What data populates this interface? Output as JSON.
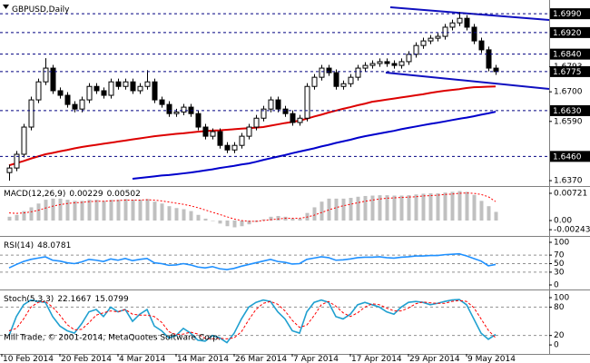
{
  "chart_data": [
    {
      "type": "candlestick",
      "title": "GBPUSD,Daily",
      "categories": [
        "10 Feb 2014",
        null,
        null,
        null,
        null,
        null,
        null,
        null,
        "20 Feb 2014",
        null,
        null,
        null,
        null,
        null,
        null,
        null,
        "4 Mar 2014",
        null,
        null,
        null,
        null,
        null,
        null,
        null,
        "14 Mar 2014",
        null,
        null,
        null,
        null,
        null,
        null,
        null,
        "26 Mar 2014",
        null,
        null,
        null,
        null,
        null,
        null,
        null,
        "7 Apr 2014",
        null,
        null,
        null,
        null,
        null,
        null,
        null,
        "17 Apr 2014",
        null,
        null,
        null,
        null,
        null,
        null,
        null,
        "29 Apr 2014",
        null,
        null,
        null,
        null,
        null,
        null,
        null,
        "9 May 2014",
        null,
        null,
        null
      ],
      "open": [
        1.64,
        1.6417,
        1.6468,
        1.6569,
        1.667,
        1.6737,
        1.6788,
        1.6704,
        1.6687,
        1.6653,
        1.6636,
        1.667,
        1.672,
        1.6704,
        1.6687,
        1.6737,
        1.672,
        1.6737,
        1.6704,
        1.672,
        1.6737,
        1.667,
        1.6653,
        1.6619,
        1.6625,
        1.6643,
        1.6619,
        1.6569,
        1.6535,
        1.6552,
        1.6501,
        1.6484,
        1.6501,
        1.6535,
        1.6569,
        1.6602,
        1.6636,
        1.667,
        1.6636,
        1.6619,
        1.6586,
        1.6602,
        1.672,
        1.6754,
        1.6788,
        1.6771,
        1.672,
        1.673,
        1.6754,
        1.6788,
        1.6798,
        1.6805,
        1.6812,
        1.6805,
        1.6798,
        1.6812,
        1.6839,
        1.6872,
        1.6889,
        1.6899,
        1.6906,
        1.694,
        1.6956,
        1.6973,
        1.694,
        1.6889,
        1.6856,
        1.6788
      ],
      "high": [
        1.6429,
        1.648,
        1.6581,
        1.6682,
        1.6749,
        1.6825,
        1.68,
        1.6716,
        1.6699,
        1.6665,
        1.6682,
        1.6732,
        1.6732,
        1.6716,
        1.6749,
        1.6749,
        1.6749,
        1.6749,
        1.6732,
        1.678,
        1.6749,
        1.6682,
        1.6665,
        1.6637,
        1.6655,
        1.6655,
        1.6631,
        1.6581,
        1.6564,
        1.6564,
        1.6513,
        1.6513,
        1.6547,
        1.6581,
        1.6614,
        1.6648,
        1.6682,
        1.6682,
        1.6648,
        1.6631,
        1.6614,
        1.6732,
        1.6766,
        1.68,
        1.68,
        1.6783,
        1.6742,
        1.6766,
        1.68,
        1.681,
        1.6817,
        1.6824,
        1.6824,
        1.6817,
        1.6824,
        1.6851,
        1.6884,
        1.6901,
        1.6911,
        1.6918,
        1.6952,
        1.6968,
        1.6996,
        1.6985,
        1.6952,
        1.6901,
        1.6868,
        1.68
      ],
      "low": [
        1.637,
        1.6405,
        1.6456,
        1.6557,
        1.6658,
        1.6725,
        1.6692,
        1.6675,
        1.6641,
        1.6624,
        1.6624,
        1.6658,
        1.6692,
        1.6675,
        1.6675,
        1.6708,
        1.6708,
        1.6692,
        1.6692,
        1.6708,
        1.6658,
        1.6641,
        1.6607,
        1.6607,
        1.6613,
        1.6607,
        1.6557,
        1.6523,
        1.6523,
        1.6489,
        1.6472,
        1.6472,
        1.6489,
        1.6523,
        1.6557,
        1.659,
        1.6624,
        1.6624,
        1.6607,
        1.6574,
        1.6574,
        1.659,
        1.6708,
        1.6742,
        1.6759,
        1.6708,
        1.6708,
        1.6718,
        1.6742,
        1.6776,
        1.6786,
        1.6793,
        1.6793,
        1.6786,
        1.6786,
        1.68,
        1.6827,
        1.686,
        1.6877,
        1.6887,
        1.6894,
        1.6928,
        1.6944,
        1.6928,
        1.6877,
        1.6844,
        1.6776,
        1.6763
      ],
      "close": [
        1.6417,
        1.6468,
        1.6569,
        1.667,
        1.6737,
        1.6788,
        1.6704,
        1.6687,
        1.6653,
        1.6636,
        1.667,
        1.672,
        1.6704,
        1.6687,
        1.6737,
        1.672,
        1.6737,
        1.6704,
        1.672,
        1.6737,
        1.667,
        1.6653,
        1.6619,
        1.6625,
        1.6643,
        1.6619,
        1.6569,
        1.6535,
        1.6552,
        1.6501,
        1.6484,
        1.6501,
        1.6535,
        1.6569,
        1.6602,
        1.6636,
        1.667,
        1.6636,
        1.6619,
        1.6586,
        1.6602,
        1.672,
        1.6754,
        1.6788,
        1.6771,
        1.672,
        1.673,
        1.6754,
        1.6788,
        1.6798,
        1.6805,
        1.6812,
        1.6805,
        1.6798,
        1.6812,
        1.6839,
        1.6872,
        1.6889,
        1.6899,
        1.6906,
        1.694,
        1.6956,
        1.6973,
        1.694,
        1.6889,
        1.6856,
        1.6788,
        1.6775
      ],
      "lines": [
        {
          "color": "#dd0000",
          "values": [
            1.6427,
            1.6435,
            1.6443,
            1.6452,
            1.646,
            1.6468,
            1.6473,
            1.6479,
            1.6484,
            1.649,
            1.6495,
            1.6499,
            1.6503,
            1.6507,
            1.6511,
            1.6515,
            1.6519,
            1.6523,
            1.6527,
            1.6531,
            1.6535,
            1.6538,
            1.6541,
            1.6544,
            1.6546,
            1.6549,
            1.6552,
            1.6554,
            1.6556,
            1.6557,
            1.6559,
            1.6561,
            1.6563,
            1.6565,
            1.6567,
            1.6569,
            1.6574,
            1.6579,
            1.6584,
            1.6588,
            1.6593,
            1.66,
            1.6608,
            1.6615,
            1.6623,
            1.663,
            1.6637,
            1.6643,
            1.665,
            1.6656,
            1.6663,
            1.6667,
            1.6671,
            1.6675,
            1.6679,
            1.6683,
            1.6687,
            1.6691,
            1.6696,
            1.67,
            1.6704,
            1.6707,
            1.671,
            1.6714,
            1.6717,
            1.6718,
            1.6719,
            1.672
          ]
        },
        {
          "color": "#0000cc",
          "values": [
            null,
            null,
            null,
            null,
            null,
            null,
            null,
            null,
            null,
            null,
            null,
            null,
            null,
            null,
            null,
            null,
            null,
            1.6377,
            1.638,
            1.6383,
            1.6386,
            1.6389,
            1.6391,
            1.6394,
            1.6397,
            1.64,
            1.6404,
            1.6408,
            1.6412,
            1.6417,
            1.6421,
            1.6425,
            1.643,
            1.6434,
            1.644,
            1.6447,
            1.6453,
            1.6459,
            1.6465,
            1.6472,
            1.6478,
            1.6484,
            1.649,
            1.6497,
            1.6503,
            1.651,
            1.6516,
            1.6522,
            1.6529,
            1.6535,
            1.654,
            1.6545,
            1.655,
            1.6555,
            1.6561,
            1.6566,
            1.6571,
            1.6576,
            1.6581,
            1.6585,
            1.659,
            1.6595,
            1.66,
            1.6604,
            1.6609,
            1.6615,
            1.662,
            1.6626
          ]
        }
      ],
      "ylim": [
        1.635,
        1.7041
      ],
      "yticks": [
        1.6793,
        {
          "value": 1.67,
          "label": "1.6700"
        },
        {
          "value": 1.659,
          "label": "1.6590"
        },
        {
          "value": 1.637,
          "label": "1.6370"
        }
      ],
      "levels": [
        {
          "value": 1.699,
          "label": "1.6990"
        },
        {
          "value": 1.692,
          "label": "1.6920"
        },
        {
          "value": 1.684,
          "label": "1.6840"
        },
        1.6775,
        {
          "value": 1.663,
          "label": "1.6630"
        },
        {
          "value": 1.646,
          "label": "1.6460"
        }
      ],
      "level_color": "#000080"
    },
    {
      "type": "macd",
      "title": "MACD(12,26,9)",
      "histogram": {
        "color": "#c0c0c0",
        "values": [
          0.001,
          0.0015,
          0.0025,
          0.0035,
          0.0045,
          0.0055,
          0.0058,
          0.0058,
          0.0055,
          0.0052,
          0.0052,
          0.0055,
          0.0055,
          0.0052,
          0.0055,
          0.0055,
          0.0057,
          0.0055,
          0.0055,
          0.0057,
          0.005,
          0.0045,
          0.0038,
          0.0033,
          0.003,
          0.0025,
          0.0015,
          0.0005,
          0.0,
          -0.0008,
          -0.0015,
          -0.0018,
          -0.0015,
          -0.001,
          -0.0004,
          0.0003,
          0.001,
          0.0012,
          0.001,
          0.0005,
          0.0005,
          0.002,
          0.0035,
          0.005,
          0.0058,
          0.0058,
          0.0058,
          0.006,
          0.0063,
          0.0065,
          0.0066,
          0.0067,
          0.0067,
          0.0066,
          0.0066,
          0.0067,
          0.0069,
          0.0071,
          0.0072,
          0.0072,
          0.0074,
          0.0076,
          0.0078,
          0.0076,
          0.0068,
          0.0052,
          0.0038,
          0.00229
        ]
      },
      "signal": {
        "color": "#ff0000",
        "values": [
          0.002,
          0.0019,
          0.002,
          0.0023,
          0.0027,
          0.0033,
          0.0038,
          0.0042,
          0.0045,
          0.0047,
          0.0048,
          0.005,
          0.0051,
          0.0051,
          0.0052,
          0.0053,
          0.0054,
          0.0054,
          0.0054,
          0.0055,
          0.0054,
          0.0052,
          0.0049,
          0.0046,
          0.0043,
          0.0039,
          0.0034,
          0.0028,
          0.0022,
          0.0016,
          0.001,
          0.0004,
          0.0,
          -0.0002,
          -0.0002,
          0.0,
          0.0002,
          0.0004,
          0.0006,
          0.0006,
          0.0006,
          0.0009,
          0.0014,
          0.0021,
          0.0028,
          0.0034,
          0.0039,
          0.0043,
          0.0047,
          0.0051,
          0.0054,
          0.0057,
          0.0059,
          0.006,
          0.0061,
          0.0062,
          0.0063,
          0.0065,
          0.0066,
          0.0067,
          0.0069,
          0.007,
          0.0072,
          0.0073,
          0.0072,
          0.0069,
          0.0063,
          0.00502
        ]
      },
      "ylim": [
        -0.0036,
        0.00865
      ],
      "yticks": [
        0.00721,
        {
          "value": 0,
          "label": "0.00"
        },
        -0.00243
      ],
      "grid": false
    },
    {
      "type": "line",
      "title": "RSI(14)",
      "series": [
        {
          "color": "#1e90ff",
          "dash": false,
          "values": [
            40,
            48,
            55,
            60,
            63,
            66,
            58,
            56,
            52,
            50,
            54,
            60,
            58,
            55,
            61,
            58,
            62,
            57,
            60,
            62,
            52,
            50,
            46,
            47,
            50,
            47,
            42,
            40,
            43,
            38,
            36,
            39,
            44,
            48,
            52,
            56,
            60,
            55,
            53,
            49,
            50,
            60,
            63,
            66,
            64,
            58,
            59,
            61,
            64,
            65,
            65,
            66,
            64,
            63,
            65,
            66,
            68,
            68,
            69,
            69,
            71,
            72,
            73,
            68,
            62,
            56,
            45,
            48.0781
          ]
        }
      ],
      "ylim": [
        -8.5,
        108.5
      ],
      "yticks": [
        100,
        70,
        50,
        30,
        0
      ],
      "grid": true
    },
    {
      "type": "line",
      "title": "Stoch(5,3,3)",
      "series": [
        {
          "color": "#20a0d0",
          "dash": false,
          "values": [
            20,
            60,
            85,
            95,
            92,
            90,
            60,
            40,
            30,
            25,
            45,
            70,
            75,
            60,
            80,
            70,
            75,
            50,
            65,
            75,
            40,
            30,
            15,
            20,
            35,
            25,
            10,
            8,
            20,
            15,
            5,
            25,
            55,
            80,
            90,
            95,
            92,
            70,
            55,
            30,
            25,
            70,
            90,
            95,
            90,
            60,
            55,
            65,
            85,
            90,
            85,
            80,
            70,
            65,
            80,
            90,
            92,
            90,
            85,
            88,
            92,
            95,
            96,
            85,
            55,
            25,
            12,
            22.1667
          ]
        },
        {
          "color": "#ff0000",
          "dash": true,
          "values": [
            30,
            35,
            55,
            80,
            90,
            92,
            80,
            63,
            43,
            32,
            33,
            47,
            63,
            68,
            72,
            70,
            75,
            65,
            63,
            63,
            60,
            48,
            28,
            22,
            23,
            27,
            23,
            14,
            13,
            14,
            13,
            15,
            28,
            53,
            75,
            88,
            92,
            86,
            72,
            52,
            37,
            42,
            62,
            85,
            92,
            82,
            68,
            60,
            68,
            80,
            87,
            85,
            78,
            72,
            72,
            78,
            87,
            91,
            89,
            88,
            88,
            92,
            94,
            92,
            79,
            55,
            31,
            15.0799
          ]
        }
      ],
      "ylim": [
        -19,
        111.5
      ],
      "yticks": [
        100,
        80,
        20,
        0
      ],
      "grid": true,
      "watermark": "Mill Trade, © 2001-2014, MetaQuotes Software Corp."
    }
  ]
}
